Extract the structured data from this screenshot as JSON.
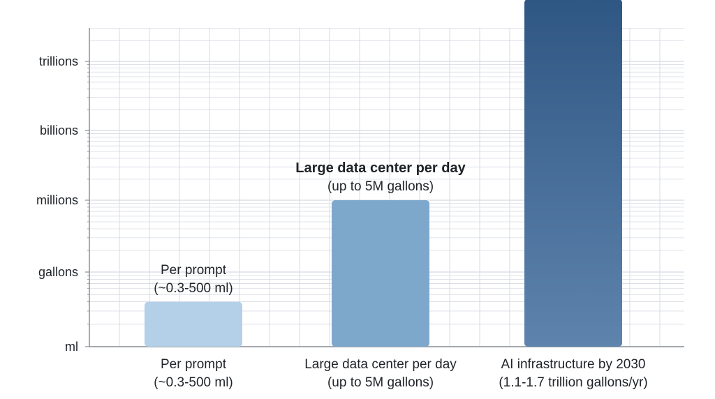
{
  "chart_data": {
    "type": "bar",
    "scale": "log",
    "grid": true,
    "y_tick_labels": [
      "ml",
      "gallons",
      "millions",
      "billions",
      "trillions"
    ],
    "categories": [
      {
        "label": "Per prompt",
        "sublabel": "(~0.3-500 ml)"
      },
      {
        "label": "Large data center per day",
        "sublabel": "(up to 5M gallons)"
      },
      {
        "label": "AI infrastructure by 2030",
        "sublabel": "(1.1-1.7 trillion gallons/yr)"
      }
    ],
    "annotations": [
      {
        "title": "Per prompt",
        "subtitle": "(~0.3-500 ml)"
      },
      {
        "title": "Large data center per day",
        "subtitle": "(up to 5M gallons)"
      },
      {
        "title": "AI infrastructure by 2030",
        "subtitle": "(1.1-1.7 trillion gallons/yr)"
      }
    ],
    "values_level": [
      0.6,
      2.0,
      4.9
    ],
    "colors": {
      "bar_light": "#b3d0e8",
      "bar_mid": "#7ea7cc",
      "bar_dark_top": "#2f5783",
      "bar_dark_bottom": "#5e84ad",
      "grid": "#d6dbe3",
      "axis": "#8a8f96"
    }
  }
}
